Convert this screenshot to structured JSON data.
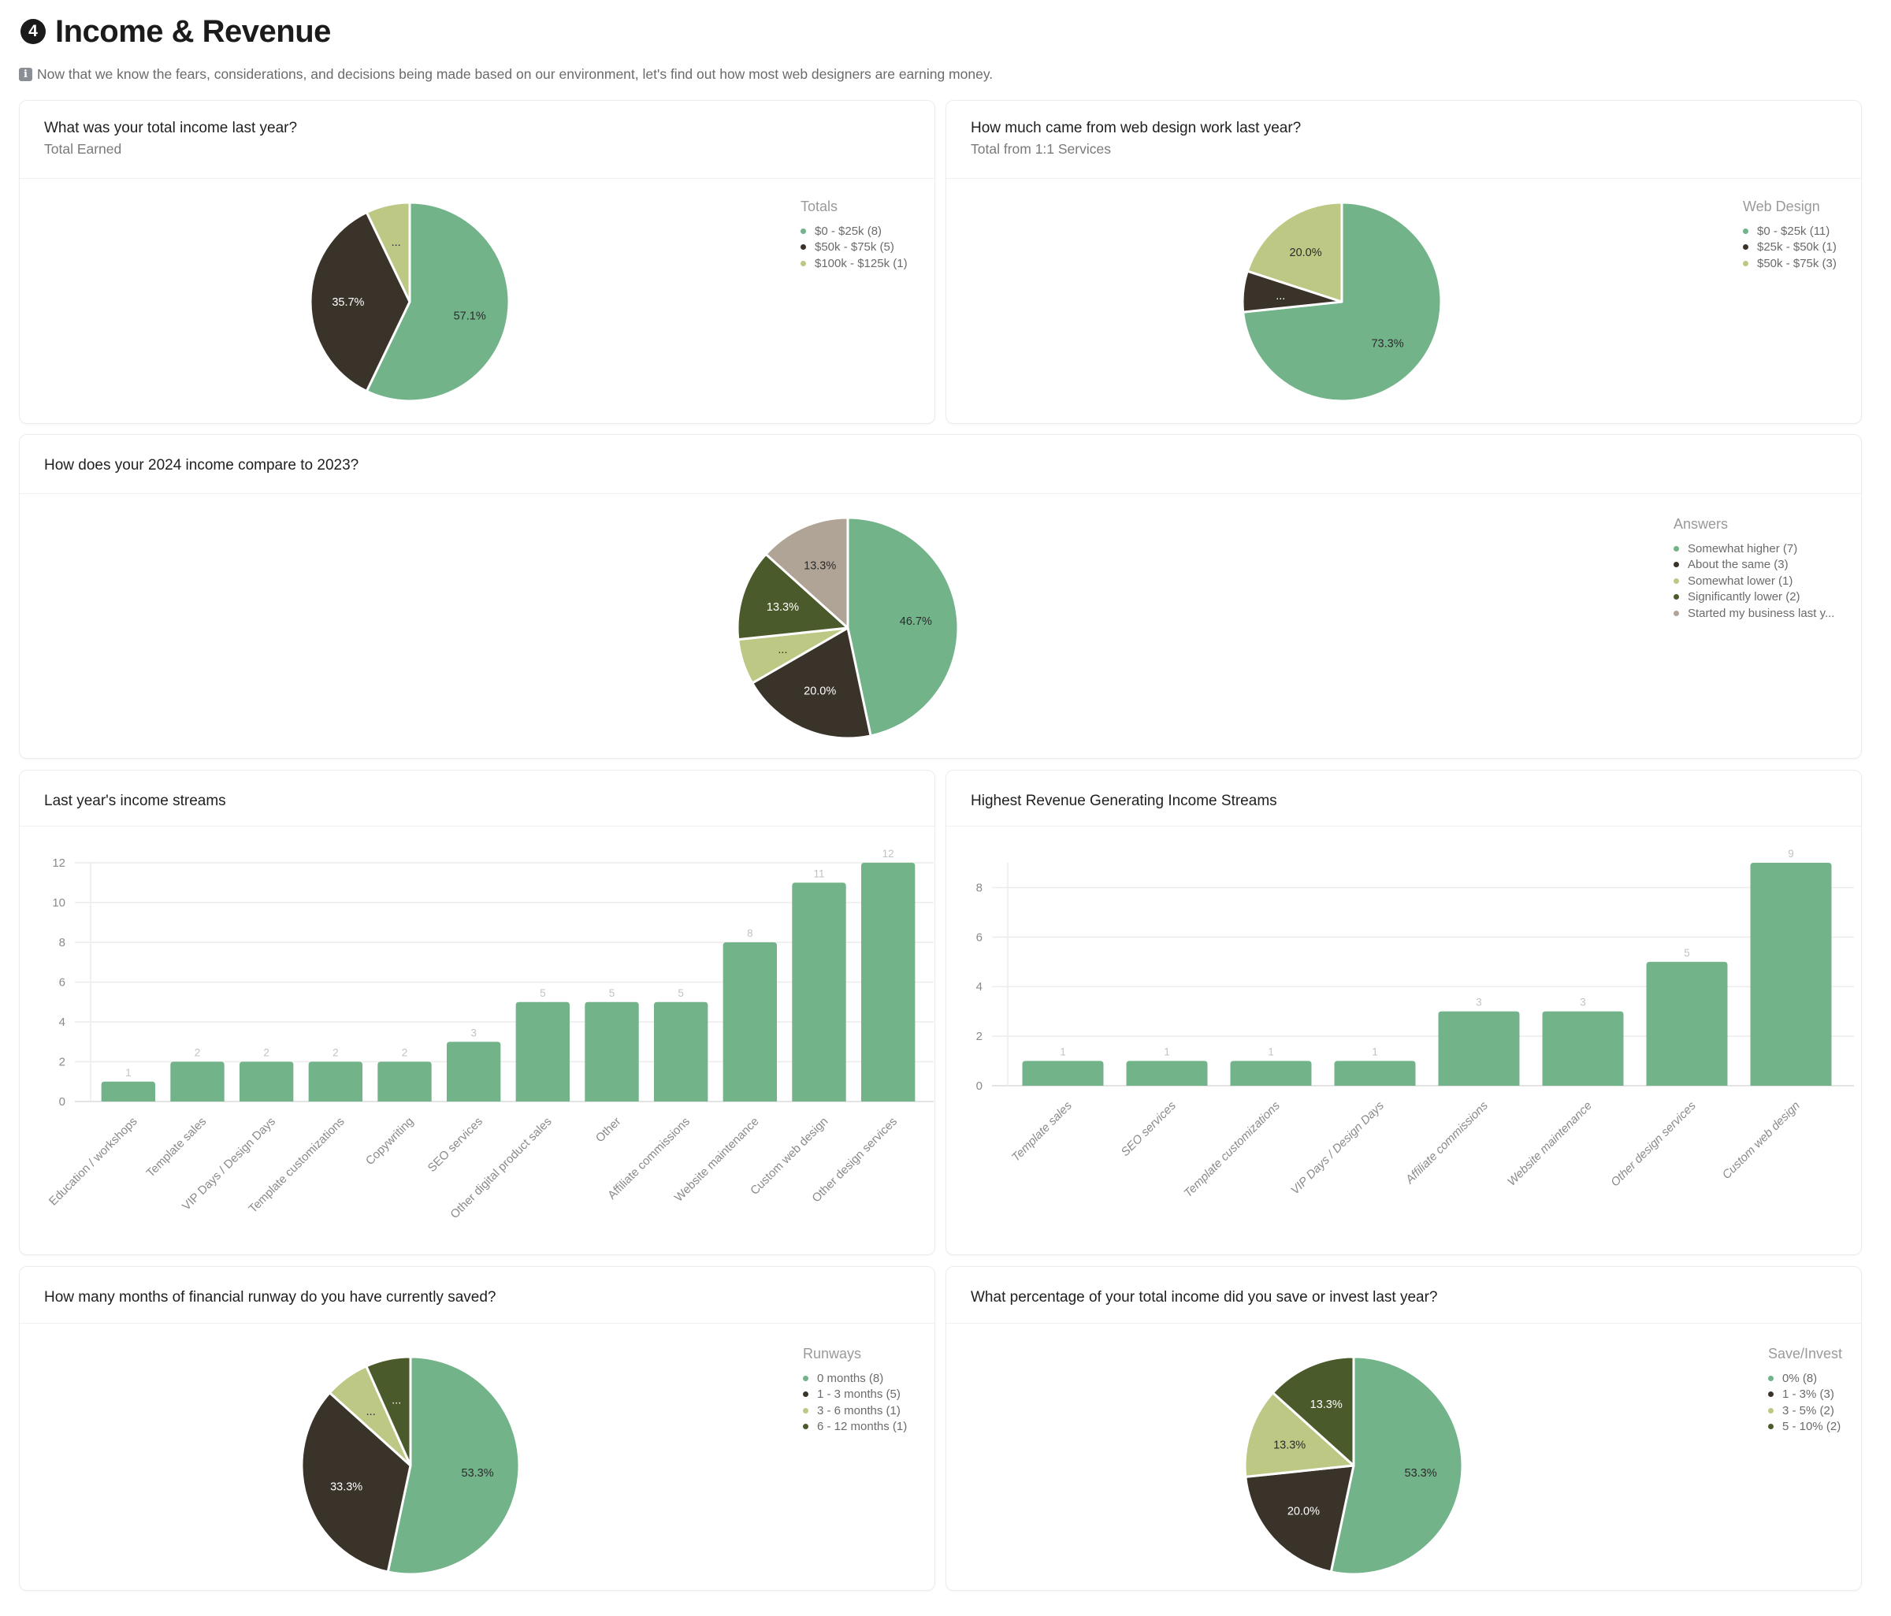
{
  "header": {
    "section_number": "4",
    "title": "Income & Revenue",
    "info_icon": "information-icon",
    "intro": "Now that we know the fears, considerations, and decisions being made based on our environment, let's find out how most web designers are earning money."
  },
  "colors": {
    "green": "#72b38a",
    "dark": "#3a332a",
    "light_olive": "#bcc884",
    "olive": "#4b5a2a",
    "taupe": "#b0a497",
    "grid": "#ececec",
    "axis_text": "#8a8a8a",
    "value_label": "#c2c2c2"
  },
  "cards": {
    "total_income": {
      "title": "What was your total income last year?",
      "subtitle": "Total Earned",
      "legend_title": "Totals",
      "legend": [
        "$0 - $25k (8)",
        "$50k - $75k (5)",
        "$100k - $125k (1)"
      ]
    },
    "web_design_income": {
      "title": "How much came from web design work last year?",
      "subtitle": "Total from 1:1 Services",
      "legend_title": "Web Design",
      "legend": [
        "$0 - $25k (11)",
        "$25k - $50k (1)",
        "$50k - $75k (3)"
      ]
    },
    "income_compare": {
      "title": "How does your 2024 income compare to 2023?",
      "legend_title": "Answers",
      "legend": [
        "Somewhat higher (7)",
        "About the same (3)",
        "Somewhat lower (1)",
        "Significantly lower (2)",
        "Started my business last y..."
      ]
    },
    "income_streams": {
      "title": "Last year's income streams"
    },
    "top_streams": {
      "title": "Highest Revenue Generating Income Streams"
    },
    "runway": {
      "title": "How many months of financial runway do you have currently saved?",
      "legend_title": "Runways",
      "legend": [
        "0 months (8)",
        "1 - 3 months (5)",
        "3 - 6 months (1)",
        "6 - 12 months (1)"
      ]
    },
    "save_invest": {
      "title": "What percentage of your total income did you save or invest last year?",
      "legend_title": "Save/Invest",
      "legend": [
        "0% (8)",
        "1 - 3% (3)",
        "3 - 5% (2)",
        "5 - 10% (2)"
      ]
    }
  },
  "chart_data": [
    {
      "id": "total_income",
      "type": "pie",
      "title": "What was your total income last year?",
      "categories": [
        "$0 - $25k",
        "$50k - $75k",
        "$100k - $125k"
      ],
      "values": [
        8,
        5,
        1
      ],
      "labels": [
        "57.1%",
        "35.7%",
        "..."
      ],
      "colors": [
        "#72b38a",
        "#3a332a",
        "#bcc884"
      ],
      "legend_position": "top-right"
    },
    {
      "id": "web_design_income",
      "type": "pie",
      "title": "How much came from web design work last year?",
      "categories": [
        "$0 - $25k",
        "$25k - $50k",
        "$50k - $75k"
      ],
      "values": [
        11,
        1,
        3
      ],
      "labels": [
        "73.3%",
        "...",
        "20.0%"
      ],
      "colors": [
        "#72b38a",
        "#3a332a",
        "#bcc884"
      ],
      "legend_position": "top-right"
    },
    {
      "id": "income_compare",
      "type": "pie",
      "title": "How does your 2024 income compare to 2023?",
      "categories": [
        "Somewhat higher",
        "About the same",
        "Somewhat lower",
        "Significantly lower",
        "Started my business last year"
      ],
      "values": [
        7,
        3,
        1,
        2,
        2
      ],
      "labels": [
        "46.7%",
        "20.0%",
        "...",
        "13.3%",
        "13.3%"
      ],
      "colors": [
        "#72b38a",
        "#3a332a",
        "#bcc884",
        "#4b5a2a",
        "#b0a497"
      ],
      "legend_position": "top-right"
    },
    {
      "id": "income_streams",
      "type": "bar",
      "title": "Last year's income streams",
      "categories": [
        "Education / workshops",
        "Template sales",
        "VIP Days / Design Days",
        "Template customizations",
        "Copywriting",
        "SEO services",
        "Other digital product sales",
        "Other",
        "Affiliate commissions",
        "Website maintenance",
        "Custom web design",
        "Other design services"
      ],
      "values": [
        1,
        2,
        2,
        2,
        2,
        3,
        5,
        5,
        5,
        8,
        11,
        12
      ],
      "yticks": [
        0,
        2,
        4,
        6,
        8,
        10,
        12
      ],
      "ylim": [
        0,
        12
      ],
      "xlabel": "",
      "ylabel": "",
      "grid": true
    },
    {
      "id": "top_streams",
      "type": "bar",
      "title": "Highest Revenue Generating Income Streams",
      "categories": [
        "Template sales",
        "SEO services",
        "Template customizations",
        "VIP Days / Design Days",
        "Affiliate commissions",
        "Website maintenance",
        "Other design services",
        "Custom web design"
      ],
      "values": [
        1,
        1,
        1,
        1,
        3,
        3,
        5,
        9
      ],
      "yticks": [
        0,
        2,
        4,
        6,
        8
      ],
      "ylim": [
        0,
        9
      ],
      "xlabel": "",
      "ylabel": "",
      "grid": true
    },
    {
      "id": "runway",
      "type": "pie",
      "title": "How many months of financial runway do you have currently saved?",
      "categories": [
        "0 months",
        "1 - 3 months",
        "3 - 6 months",
        "6 - 12 months"
      ],
      "values": [
        8,
        5,
        1,
        1
      ],
      "labels": [
        "53.3%",
        "33.3%",
        "...",
        "..."
      ],
      "colors": [
        "#72b38a",
        "#3a332a",
        "#bcc884",
        "#4b5a2a"
      ],
      "legend_position": "top-right"
    },
    {
      "id": "save_invest",
      "type": "pie",
      "title": "What percentage of your total income did you save or invest last year?",
      "categories": [
        "0%",
        "1 - 3%",
        "3 - 5%",
        "5 - 10%"
      ],
      "values": [
        8,
        3,
        2,
        2
      ],
      "labels": [
        "53.3%",
        "20.0%",
        "13.3%",
        "13.3%"
      ],
      "colors": [
        "#72b38a",
        "#3a332a",
        "#bcc884",
        "#4b5a2a"
      ],
      "legend_position": "top-right"
    }
  ]
}
